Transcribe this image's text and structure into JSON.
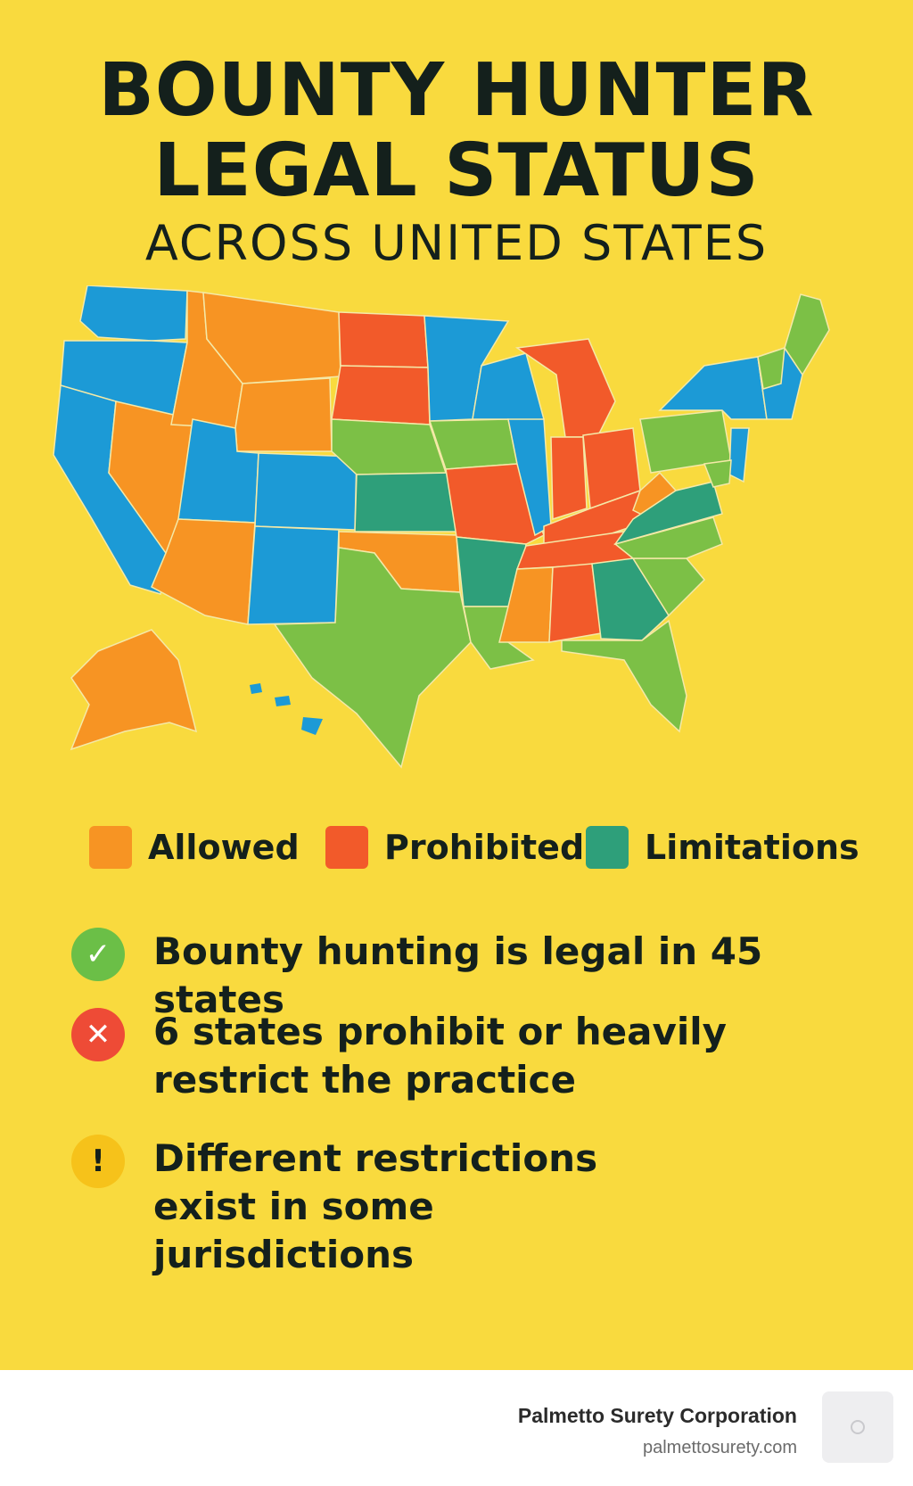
{
  "title": {
    "line1": "BOUNTY HUNTER",
    "line2": "LEGAL STATUS",
    "line3": "ACROSS UNITED STATES"
  },
  "colors": {
    "background": "#f9da3e",
    "allowed": "#f79423",
    "prohibited": "#f25a2a",
    "limitations": "#2e9f7a",
    "legal": "#7cc046",
    "other": "#1c9ad6",
    "check": "#6bbf47",
    "cross": "#ee4b36",
    "warn": "#f6c21a"
  },
  "legend": [
    {
      "label": "Allowed",
      "color": "#f79423"
    },
    {
      "label": "Prohibited",
      "color": "#f25a2a"
    },
    {
      "label": "Limitations",
      "color": "#2e9f7a"
    }
  ],
  "points": [
    {
      "icon": "check-icon",
      "text": "Bounty hunting is legal in 45 states"
    },
    {
      "icon": "cross-icon",
      "text": "6 states prohibit or heavily restrict the practice"
    },
    {
      "icon": "warning-icon",
      "text": "Different restrictions exist in some jurisdictions"
    }
  ],
  "footer": {
    "company": "Palmetto Surety Corporation",
    "site": "palmettosurety.com"
  }
}
